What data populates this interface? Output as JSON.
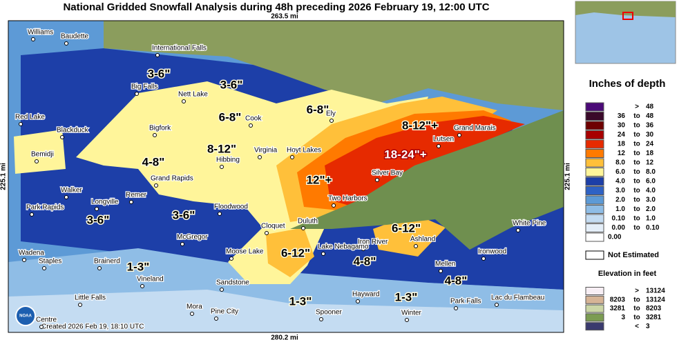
{
  "title": "National Gridded Snowfall Analysis during 48h preceding 2026 February 19, 12:00 UTC",
  "scale": {
    "top": "263.5 mi",
    "bottom": "280.2 mi",
    "left": "225.1 mi",
    "right": "225.1 mi"
  },
  "cities": [
    "Williams",
    "Baudette",
    "International Falls",
    "Big Falls",
    "Nett Lake",
    "Red Lake",
    "Blackduck",
    "Bigfork",
    "Cook",
    "Ely",
    "Grand Marais",
    "Lutsen",
    "Virginia",
    "Hoyt Lakes",
    "Hibbing",
    "Bemidji",
    "Silver Bay",
    "Grand Rapids",
    "Walker",
    "Remer",
    "Longville",
    "Two Harbors",
    "Park Rapids",
    "Floodwood",
    "White Pine",
    "Cloquet",
    "Duluth",
    "Iron River",
    "Ashland",
    "McGregor",
    "Lake Nebagamo",
    "Ironwood",
    "Moose Lake",
    "Wadena",
    "Staples",
    "Brainerd",
    "Mellen",
    "Vineland",
    "Sandstone",
    "Hayward",
    "Park Falls",
    "Lac du Flambeau",
    "Little Falls",
    "Mora",
    "Pine City",
    "Spooner",
    "Winter",
    "Centre"
  ],
  "amounts": [
    "3-6\"",
    "3-6\"",
    "6-8\"",
    "6-8\"",
    "8-12\"+",
    "8-12\"",
    "18-24\"+",
    "4-8\"",
    "12\"+",
    "3-6\"",
    "3-6\"",
    "6-12\"",
    "6-12\"",
    "4-8\"",
    "1-3\"",
    "4-8\"",
    "1-3\"",
    "1-3\""
  ],
  "created": "Created 2026 Feb 19, 18:10 UTC",
  "logo": "NOAA",
  "legend": {
    "title": "Inches of depth",
    "rows": [
      {
        "cells": [
          ">",
          "48"
        ],
        "color": "#4b0a78"
      },
      {
        "cells": [
          "36",
          "to",
          "48"
        ],
        "color": "#3a0a2a"
      },
      {
        "cells": [
          "30",
          "to",
          "36"
        ],
        "color": "#6e0000"
      },
      {
        "cells": [
          "24",
          "to",
          "30"
        ],
        "color": "#a80000"
      },
      {
        "cells": [
          "18",
          "to",
          "24"
        ],
        "color": "#e62a00"
      },
      {
        "cells": [
          "12",
          "to",
          "18"
        ],
        "color": "#ff7a00"
      },
      {
        "cells": [
          "8.0",
          "to",
          "12"
        ],
        "color": "#ffc03a"
      },
      {
        "cells": [
          "6.0",
          "to",
          "8.0"
        ],
        "color": "#fff59a"
      },
      {
        "cells": [
          "4.0",
          "to",
          "6.0"
        ],
        "color": "#1d3fa8"
      },
      {
        "cells": [
          "3.0",
          "to",
          "4.0"
        ],
        "color": "#2f62c4"
      },
      {
        "cells": [
          "2.0",
          "to",
          "3.0"
        ],
        "color": "#5d9ad6"
      },
      {
        "cells": [
          "1.0",
          "to",
          "2.0"
        ],
        "color": "#8fbde6"
      },
      {
        "cells": [
          "0.10",
          "to",
          "1.0"
        ],
        "color": "#c4dcf2"
      },
      {
        "cells": [
          "0.00",
          "to",
          "0.10"
        ],
        "color": "#e4eef8"
      },
      {
        "cells": [
          "0.00"
        ],
        "color": "#ffffff"
      }
    ],
    "not_estimated": "Not Estimated",
    "elevation_title": "Elevation in feet",
    "elevation_rows": [
      {
        "cells": [
          ">",
          "13124"
        ],
        "color": "#f7eef4"
      },
      {
        "cells": [
          "8203",
          "to",
          "13124"
        ],
        "color": "#d6b496"
      },
      {
        "cells": [
          "3281",
          "to",
          "8203"
        ],
        "color": "#cbd6a6"
      },
      {
        "cells": [
          "3",
          "to",
          "3281"
        ],
        "color": "#7b9c52"
      },
      {
        "cells": [
          "<",
          "3"
        ],
        "color": "#3a3a6e"
      }
    ]
  }
}
